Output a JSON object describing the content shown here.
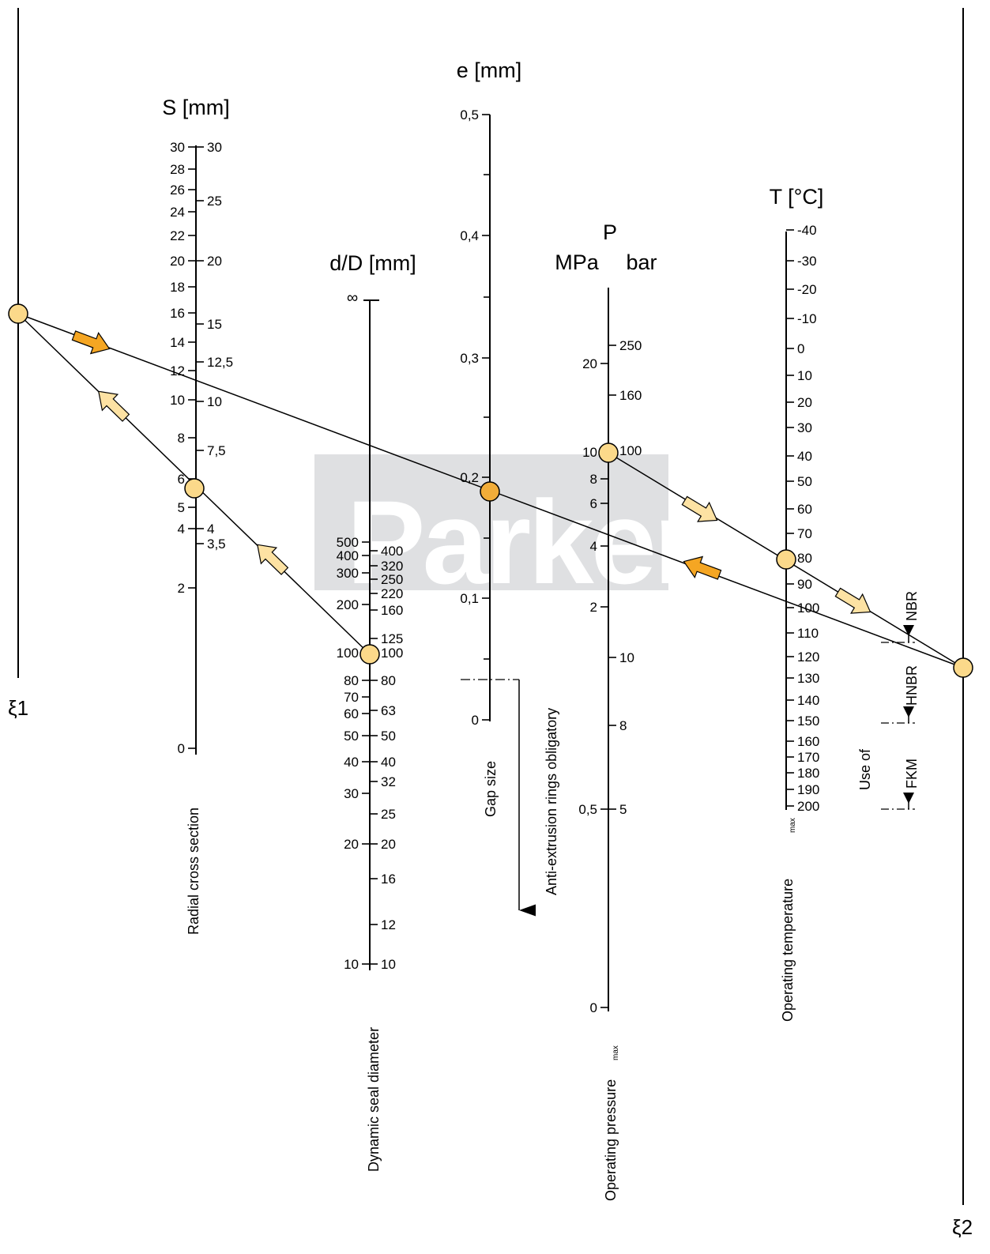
{
  "watermark": {
    "text": "Parker",
    "panel_color": "#dfe0e2"
  },
  "colors": {
    "node_light": "#fbd98a",
    "node_dark": "#f2ad39",
    "arrow_light": "#fde2a3",
    "arrow_dark": "#f5a623"
  },
  "pivots": {
    "left": "ξ1",
    "right": "ξ2"
  },
  "scales": {
    "S": {
      "title": "S [mm]",
      "caption": "Radial cross section",
      "left_ticks": [
        "30",
        "28",
        "26",
        "24",
        "22",
        "20",
        "18",
        "16",
        "14",
        "12",
        "10",
        "8",
        "6",
        "5",
        "4",
        "2",
        "0"
      ],
      "right_ticks": [
        "30",
        "25",
        "20",
        "15",
        "12,5",
        "10",
        "7,5",
        "4",
        "3,5"
      ]
    },
    "dD": {
      "title": "d/D [mm]",
      "top_mark": "∞",
      "caption": "Dynamic seal diameter",
      "left_ticks": [
        "500",
        "400",
        "300",
        "200",
        "100",
        "80",
        "70",
        "60",
        "50",
        "40",
        "30",
        "20",
        "10"
      ],
      "right_ticks": [
        "400",
        "320",
        "250",
        "220",
        "160",
        "125",
        "100",
        "80",
        "63",
        "50",
        "40",
        "32",
        "25",
        "20",
        "16",
        "12",
        "10"
      ]
    },
    "e": {
      "title": "e [mm]",
      "caption": "Gap size",
      "ticks": [
        "0,5",
        "0,4",
        "0,3",
        "0,2",
        "0,1",
        "0"
      ],
      "note": "Anti-extrusion rings obligatory"
    },
    "P": {
      "title": "P",
      "unit_left": "MPa",
      "unit_right": "bar",
      "caption": "Operating pressure",
      "caption_sub": "max",
      "left_ticks": [
        "20",
        "10",
        "8",
        "6",
        "4",
        "2",
        "0,5",
        "0"
      ],
      "right_ticks": [
        "250",
        "160",
        "100",
        "10",
        "8",
        "5"
      ]
    },
    "T": {
      "title": "T [°C]",
      "caption": "Operating temperature",
      "caption_sub": "max",
      "ticks": [
        "-40",
        "-30",
        "-20",
        "-10",
        "0",
        "10",
        "20",
        "30",
        "40",
        "50",
        "60",
        "70",
        "80",
        "90",
        "100",
        "110",
        "120",
        "130",
        "140",
        "150",
        "160",
        "170",
        "180",
        "190",
        "200"
      ]
    }
  },
  "materials": {
    "caption": "Use of",
    "items": [
      "NBR",
      "HNBR",
      "FKM"
    ]
  }
}
